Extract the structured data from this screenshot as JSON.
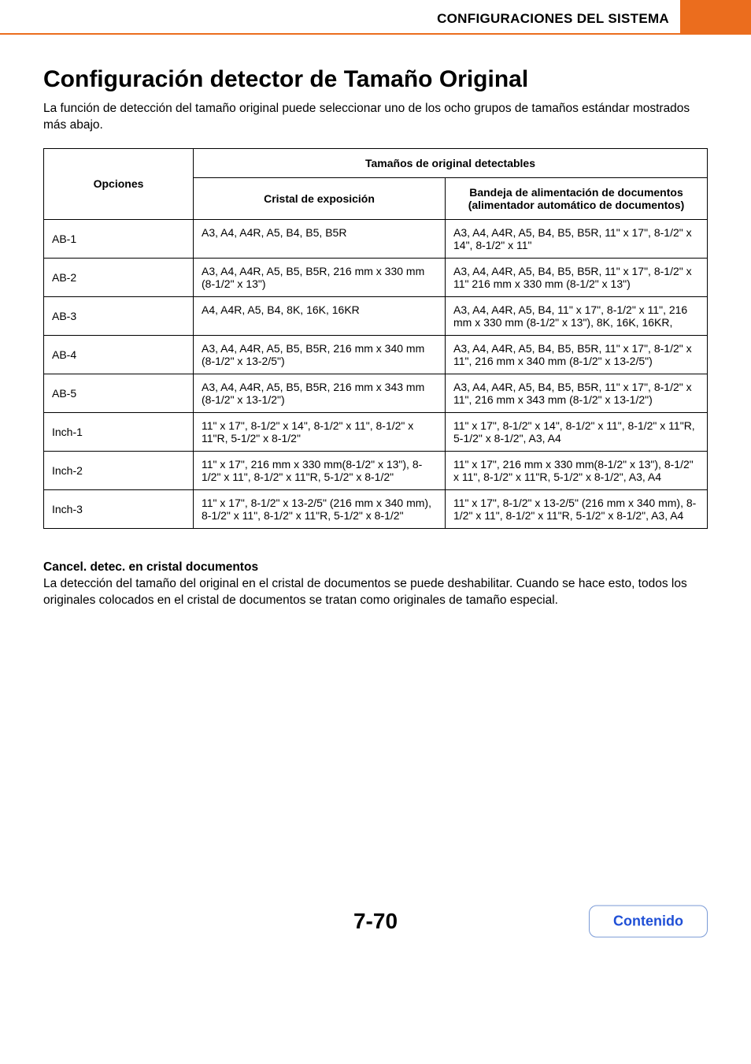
{
  "header": {
    "section_title": "CONFIGURACIONES DEL SISTEMA"
  },
  "main": {
    "title": "Configuración detector de Tamaño Original",
    "intro": "La función de detección del tamaño original puede seleccionar uno de los ocho grupos de tamaños estándar mostrados más abajo."
  },
  "table": {
    "columns": {
      "options": "Opciones",
      "detectable_header": "Tamaños de original detectables",
      "glass": "Cristal de exposición",
      "feeder": "Bandeja de alimentación de documentos (alimentador automático de documentos)"
    },
    "rows": [
      {
        "option": "AB-1",
        "glass": "A3, A4, A4R, A5, B4, B5, B5R",
        "feeder": "A3, A4, A4R, A5, B4, B5, B5R, 11\" x 17\", 8-1/2\" x 14\", 8-1/2\" x 11\""
      },
      {
        "option": "AB-2",
        "glass": "A3, A4, A4R, A5, B5, B5R, 216 mm x 330 mm (8-1/2\"  x 13\")",
        "feeder": "A3, A4, A4R, A5, B4, B5, B5R, 11\" x 17\", 8-1/2\" x 11\" 216 mm x 330 mm (8-1/2\" x 13\")"
      },
      {
        "option": "AB-3",
        "glass": "A4, A4R, A5, B4, 8K, 16K, 16KR",
        "feeder": "A3, A4, A4R, A5, B4, 11\" x 17\", 8-1/2\" x 11\", 216 mm x 330 mm (8-1/2\" x 13\"), 8K, 16K, 16KR,"
      },
      {
        "option": "AB-4",
        "glass": "A3, A4, A4R, A5, B5, B5R, 216 mm x 340 mm (8-1/2\" x 13-2/5\")",
        "feeder": "A3, A4, A4R, A5, B4, B5, B5R, 11\" x 17\", 8-1/2\" x 11\", 216 mm x 340 mm (8-1/2\" x 13-2/5\")"
      },
      {
        "option": "AB-5",
        "glass": "A3, A4, A4R, A5, B5, B5R, 216 mm x 343 mm (8-1/2\" x 13-1/2\")",
        "feeder": "A3, A4, A4R, A5, B4, B5, B5R, 11\" x 17\", 8-1/2\" x 11\", 216 mm x 343 mm (8-1/2\" x 13-1/2\")"
      },
      {
        "option": "Inch-1",
        "glass": "11\" x 17\", 8-1/2\" x 14\", 8-1/2\" x 11\", 8-1/2\" x 11\"R, 5-1/2\" x 8-1/2\"",
        "feeder": "11\" x 17\", 8-1/2\" x 14\", 8-1/2\" x 11\", 8-1/2\" x 11\"R, 5-1/2\" x 8-1/2\", A3, A4"
      },
      {
        "option": "Inch-2",
        "glass": "11\" x 17\", 216 mm x 330 mm(8-1/2\" x 13\"), 8-1/2\" x 11\", 8-1/2\" x 11\"R, 5-1/2\" x 8-1/2\"",
        "feeder": "11\" x 17\", 216 mm x 330 mm(8-1/2\" x 13\"), 8-1/2\" x 11\", 8-1/2\" x 11\"R, 5-1/2\" x 8-1/2\", A3, A4"
      },
      {
        "option": "Inch-3",
        "glass": "11\" x 17\", 8-1/2\" x 13-2/5\" (216 mm x 340 mm), 8-1/2\" x 11\", 8-1/2\" x 11\"R, 5-1/2\" x 8-1/2\"",
        "feeder": "11\" x 17\", 8-1/2\" x 13-2/5\" (216 mm x 340 mm), 8-1/2\" x 11\", 8-1/2\" x 11\"R, 5-1/2\" x 8-1/2\", A3, A4"
      }
    ]
  },
  "subsection": {
    "title": "Cancel. detec. en cristal documentos",
    "text": "La detección del tamaño del original en el cristal de documentos se puede deshabilitar. Cuando se hace esto, todos los originales colocados en el cristal de documentos se tratan como originales de tamaño especial."
  },
  "footer": {
    "page_number": "7-70",
    "button_label": "Contenido"
  },
  "style": {
    "accent_color": "#eb6d1e",
    "link_color": "#1f4fd6"
  }
}
